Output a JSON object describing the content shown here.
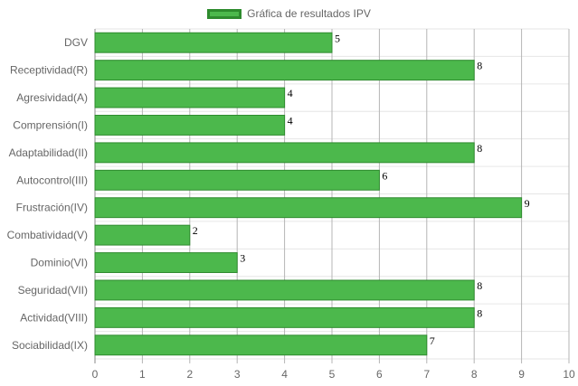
{
  "chart_data": {
    "type": "bar",
    "orientation": "horizontal",
    "categories": [
      "DGV",
      "Receptividad(R)",
      "Agresividad(A)",
      "Comprensión(I)",
      "Adaptabilidad(II)",
      "Autocontrol(III)",
      "Frustración(IV)",
      "Combatividad(V)",
      "Dominio(VI)",
      "Seguridad(VII)",
      "Actividad(VIII)",
      "Sociabilidad(IX)"
    ],
    "series": [
      {
        "name": "Gráfica de resultados IPV",
        "values": [
          5,
          8,
          4,
          4,
          8,
          6,
          9,
          2,
          3,
          8,
          8,
          7
        ],
        "color": "#4cb84c",
        "border_color": "#2e8b2e"
      }
    ],
    "xlim": [
      0,
      10
    ],
    "x_ticks": [
      "0",
      "1",
      "2",
      "3",
      "4",
      "5",
      "6",
      "7",
      "8",
      "9",
      "10"
    ],
    "grid": true,
    "legend_position": "top",
    "show_value_labels": true
  }
}
